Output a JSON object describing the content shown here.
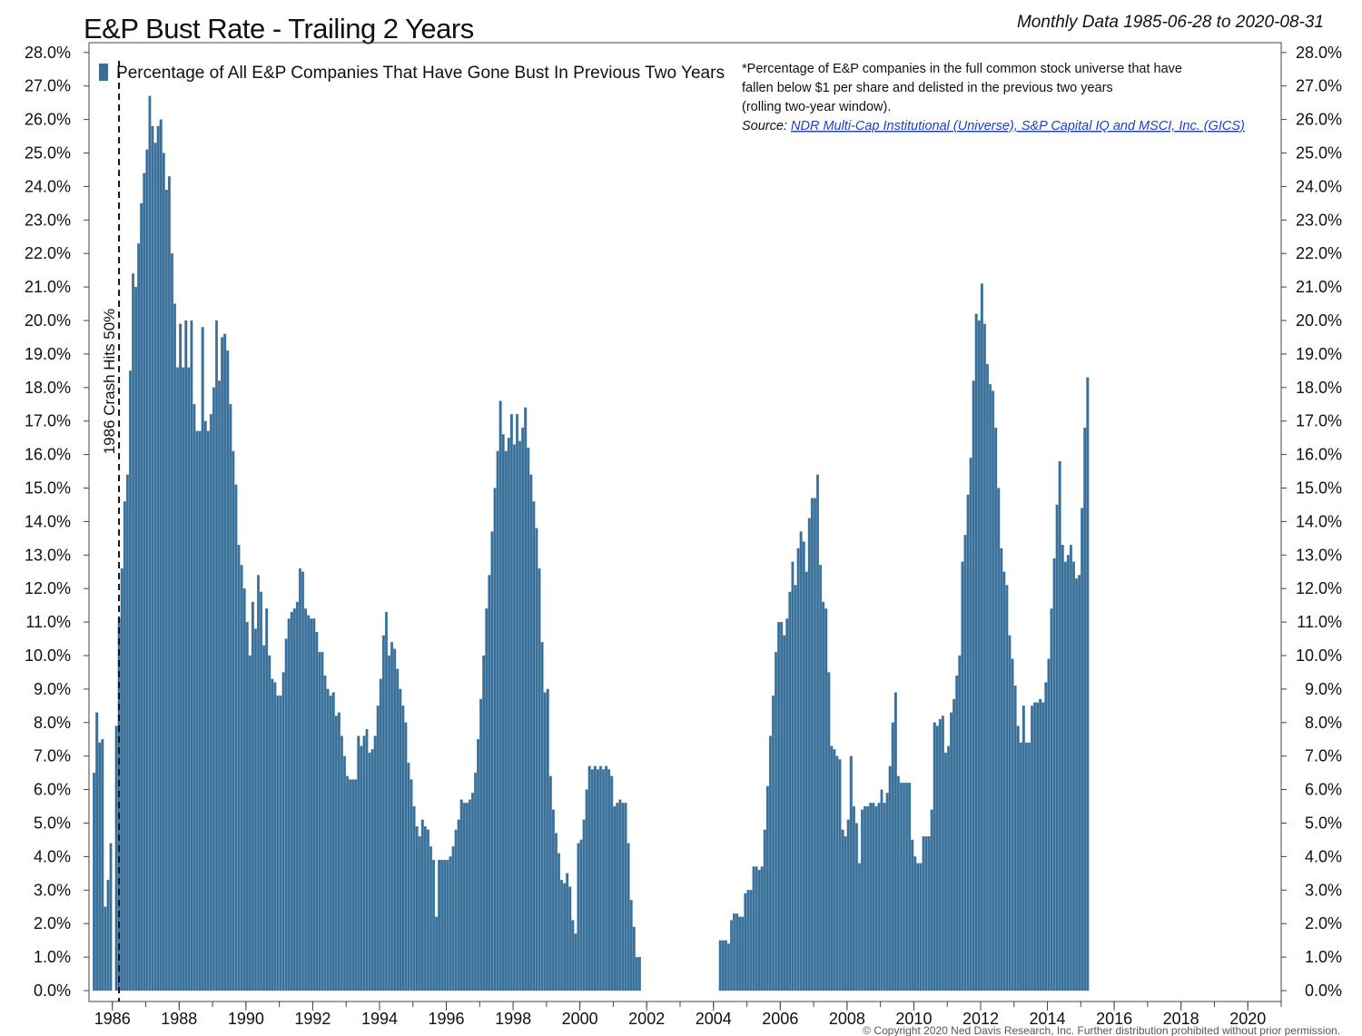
{
  "chart_data": {
    "type": "bar",
    "title": "E&P Bust Rate - Trailing 2 Years",
    "subtitle": "Monthly Data 1985-06-28 to 2020-08-31",
    "legend": {
      "label": "Percentage of All E&P Companies That Have Gone Bust In Previous Two Years",
      "placement": "top-left",
      "color": "#3a6f98"
    },
    "note": {
      "lines": [
        "*Percentage of E&P companies in the full common stock universe that have",
        "fallen below $1 per share and delisted in the previous two years",
        "(rolling two-year window)."
      ],
      "source_prefix": "Source: ",
      "source_text": "NDR Multi-Cap Institutional (Universe), S&P Capital IQ and MSCI, Inc. (GICS)"
    },
    "annotation": {
      "label": "1986 Crash Hits 50%",
      "x": 1986.2
    },
    "footer": "© Copyright 2020 Ned Davis Research, Inc. Further distribution prohibited without prior permission.",
    "xlim": [
      1985.3,
      2021.0
    ],
    "ylim": [
      0,
      28
    ],
    "x_ticks": [
      1986,
      1988,
      1990,
      1992,
      1994,
      1996,
      1998,
      2000,
      2002,
      2004,
      2006,
      2008,
      2010,
      2012,
      2014,
      2016,
      2018,
      2020
    ],
    "y_ticks": [
      "0.0%",
      "1.0%",
      "2.0%",
      "3.0%",
      "4.0%",
      "5.0%",
      "6.0%",
      "7.0%",
      "8.0%",
      "9.0%",
      "10.0%",
      "11.0%",
      "12.0%",
      "13.0%",
      "14.0%",
      "15.0%",
      "16.0%",
      "17.0%",
      "18.0%",
      "19.0%",
      "20.0%",
      "21.0%",
      "22.0%",
      "23.0%",
      "24.0%",
      "25.0%",
      "26.0%",
      "27.0%",
      "28.0%"
    ],
    "bar_color": "#3a6f98",
    "series": [
      {
        "name": "Percentage of All E&P Companies That Have Gone Bust In Previous Two Years",
        "start": "1985-06",
        "interval": "monthly",
        "values": [
          6.5,
          8.3,
          7.4,
          7.5,
          2.5,
          3.3,
          4.4,
          0.0,
          7.9,
          11.1,
          12.6,
          14.6,
          15.4,
          18.5,
          21.4,
          21.0,
          22.3,
          23.5,
          24.4,
          25.1,
          26.7,
          25.8,
          25.3,
          25.8,
          26.0,
          25.0,
          23.9,
          24.3,
          22.0,
          20.5,
          18.6,
          19.9,
          18.6,
          20.0,
          18.6,
          20.0,
          17.5,
          16.7,
          16.7,
          19.8,
          17.0,
          16.7,
          17.2,
          18.0,
          20.0,
          18.2,
          19.5,
          19.6,
          19.1,
          17.5,
          16.1,
          15.1,
          13.3,
          12.7,
          12.0,
          11.0,
          10.0,
          11.6,
          10.8,
          12.4,
          11.9,
          10.3,
          11.4,
          10.0,
          9.3,
          9.2,
          8.8,
          8.8,
          9.5,
          10.5,
          11.1,
          11.3,
          11.4,
          11.6,
          12.6,
          12.5,
          11.4,
          11.2,
          11.1,
          11.1,
          10.7,
          10.1,
          10.1,
          9.4,
          9.0,
          8.8,
          8.9,
          8.2,
          8.3,
          7.6,
          7.0,
          6.4,
          6.3,
          6.3,
          6.3,
          7.6,
          7.3,
          7.6,
          7.8,
          7.1,
          7.2,
          7.6,
          8.5,
          9.3,
          10.6,
          11.3,
          10.0,
          10.4,
          10.2,
          9.6,
          9.0,
          8.5,
          8.0,
          6.8,
          6.3,
          5.5,
          4.9,
          4.6,
          5.1,
          4.9,
          4.8,
          4.3,
          3.9,
          2.2,
          3.9,
          3.9,
          3.9,
          3.9,
          4.0,
          4.3,
          4.8,
          5.1,
          5.7,
          5.6,
          5.6,
          5.7,
          5.9,
          6.5,
          7.5,
          8.7,
          10.0,
          11.4,
          12.4,
          13.7,
          15.0,
          16.1,
          17.6,
          16.6,
          16.1,
          16.5,
          17.2,
          16.3,
          17.2,
          16.4,
          16.8,
          17.4,
          16.2,
          15.4,
          14.6,
          13.8,
          12.6,
          10.4,
          8.9,
          9.0,
          6.4,
          5.4,
          4.7,
          4.1,
          3.3,
          3.2,
          3.5,
          3.1,
          2.1,
          1.7,
          4.4,
          4.5,
          5.1,
          6.0,
          6.7,
          6.6,
          6.7,
          6.6,
          6.7,
          6.6,
          6.7,
          6.6,
          6.4,
          5.5,
          5.6,
          5.7,
          5.6,
          5.6,
          4.4,
          2.7,
          1.9,
          1.0,
          1.0,
          0,
          0,
          0,
          0,
          0,
          0,
          0,
          0,
          0,
          0,
          0,
          0,
          0,
          0,
          0,
          0,
          0,
          0,
          0,
          0,
          0,
          0,
          0,
          0,
          0,
          0,
          0,
          0,
          1.5,
          1.5,
          1.5,
          1.4,
          2.1,
          2.3,
          2.3,
          2.2,
          2.2,
          2.9,
          3.0,
          3.0,
          3.7,
          3.7,
          3.6,
          3.7,
          4.8,
          6.1,
          7.6,
          8.8,
          10.1,
          11.0,
          11.0,
          10.6,
          11.1,
          11.9,
          12.8,
          12.1,
          13.2,
          13.7,
          13.4,
          12.5,
          14.1,
          14.7,
          14.7,
          15.4,
          12.7,
          11.6,
          11.4,
          9.5,
          7.3,
          7.2,
          7.0,
          6.9,
          4.8,
          4.6,
          5.1,
          7.0,
          5.5,
          5.0,
          3.8,
          5.4,
          5.5,
          5.5,
          5.6,
          5.6,
          5.5,
          5.6,
          6.0,
          5.6,
          5.9,
          6.7,
          8.0,
          8.9,
          6.4,
          6.2,
          6.2,
          6.2,
          6.2,
          4.5,
          4.0,
          3.8,
          3.8,
          4.6,
          4.6,
          4.6,
          5.4,
          8.0,
          7.9,
          8.1,
          8.2,
          7.1,
          7.3,
          8.3,
          8.7,
          9.4,
          10.0,
          12.8,
          13.6,
          14.8,
          15.9,
          18.2,
          20.2,
          20.0,
          21.1,
          19.9,
          18.7,
          18.1,
          17.9,
          16.8,
          15.0,
          13.2,
          12.5,
          12.1,
          10.6,
          9.9,
          9.1,
          7.9,
          7.4,
          8.5,
          7.4,
          7.4,
          8.5,
          8.6,
          8.6,
          8.7,
          8.6,
          9.2,
          9.9,
          11.4,
          12.9,
          14.5,
          15.8,
          13.3,
          12.8,
          13.0,
          13.3,
          12.8,
          12.3,
          12.4,
          14.4,
          16.8,
          18.3
        ]
      }
    ]
  }
}
